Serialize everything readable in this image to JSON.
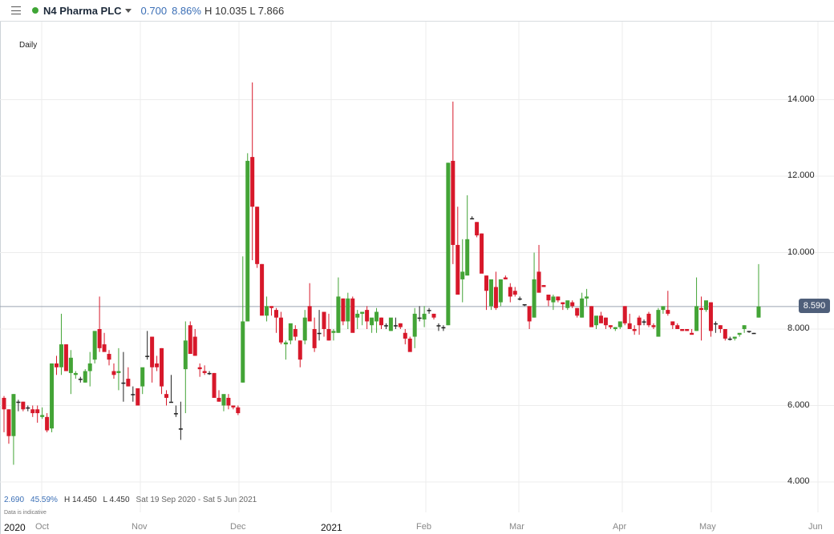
{
  "header": {
    "menu_icon": "hamburger-menu-icon",
    "status_color": "#3fa535",
    "instrument": "N4 Pharma PLC",
    "change": "0.700",
    "change_pct": "8.86%",
    "high_low": "H 10.035 L 7.866"
  },
  "interval": "Daily",
  "footer": {
    "change": "2.690",
    "change_pct": "45.59%",
    "high": "H 14.450",
    "low": "L 4.450",
    "range": "Sat 19 Sep 2020 - Sat 5 Jun 2021",
    "disclaimer": "Data is indicative"
  },
  "current_price": "8.590",
  "colors": {
    "up": "#43a436",
    "down": "#d7182a",
    "doji": "#222222",
    "grid": "#ececec",
    "price_line": "#9aa3b0",
    "price_tag": "#4f5f7a"
  },
  "chart_data": {
    "type": "candlestick",
    "title": "N4 Pharma PLC",
    "interval": "Daily",
    "y_ticks": [
      "4.000",
      "6.000",
      "8.000",
      "10.000",
      "12.000",
      "14.000"
    ],
    "ylim": [
      3.6,
      16.3
    ],
    "x_ticks": [
      {
        "label": "2020",
        "year": true
      },
      {
        "label": "Oct"
      },
      {
        "label": "Nov"
      },
      {
        "label": "Dec"
      },
      {
        "label": "2021",
        "year": true
      },
      {
        "label": "Feb"
      },
      {
        "label": "Mar"
      },
      {
        "label": "Apr"
      },
      {
        "label": "May"
      },
      {
        "label": "Jun"
      }
    ],
    "grid": true,
    "current_price_line": 8.59,
    "period_high": 14.45,
    "period_low": 4.45,
    "candles_ohlc": [
      [
        6.2,
        6.25,
        5.3,
        5.9
      ],
      [
        5.9,
        5.9,
        5.0,
        5.2
      ],
      [
        5.2,
        6.3,
        4.45,
        6.3
      ],
      [
        6.1,
        6.15,
        5.85,
        6.1
      ],
      [
        6.1,
        6.1,
        5.85,
        5.9
      ],
      [
        5.95,
        6.0,
        5.85,
        5.95
      ],
      [
        5.9,
        6.0,
        5.7,
        5.8
      ],
      [
        5.9,
        6.0,
        5.55,
        5.8
      ],
      [
        5.7,
        5.95,
        5.65,
        5.75
      ],
      [
        5.7,
        5.8,
        5.3,
        5.35
      ],
      [
        5.4,
        7.1,
        5.3,
        7.1
      ],
      [
        7.1,
        7.3,
        6.8,
        7.0
      ],
      [
        7.0,
        8.4,
        6.8,
        7.6
      ],
      [
        7.6,
        7.6,
        6.9,
        6.9
      ],
      [
        6.85,
        7.45,
        6.3,
        7.25
      ],
      [
        6.8,
        6.9,
        6.7,
        6.85
      ],
      [
        6.7,
        6.75,
        6.6,
        6.7
      ],
      [
        6.6,
        6.95,
        6.6,
        6.9
      ],
      [
        6.9,
        7.4,
        6.5,
        7.1
      ],
      [
        7.2,
        7.95,
        7.1,
        7.95
      ],
      [
        8.0,
        8.85,
        7.4,
        7.5
      ],
      [
        7.6,
        7.9,
        7.5,
        7.4
      ],
      [
        7.35,
        7.45,
        7.05,
        7.2
      ],
      [
        6.9,
        7.1,
        6.7,
        6.8
      ],
      [
        6.85,
        7.5,
        6.4,
        6.9
      ],
      [
        6.6,
        7.4,
        6.1,
        6.6
      ],
      [
        6.7,
        7.0,
        6.5,
        6.5
      ],
      [
        6.3,
        6.5,
        6.1,
        6.3
      ],
      [
        6.45,
        6.45,
        6.0,
        6.0
      ],
      [
        6.5,
        6.7,
        6.3,
        7.0
      ],
      [
        7.3,
        7.95,
        7.2,
        7.3
      ],
      [
        7.8,
        7.8,
        6.6,
        7.0
      ],
      [
        7.1,
        7.3,
        6.9,
        7.0
      ],
      [
        7.5,
        7.5,
        6.3,
        6.5
      ],
      [
        6.3,
        6.4,
        6.0,
        6.2
      ],
      [
        6.1,
        6.8,
        6.1,
        6.1
      ],
      [
        5.8,
        6.0,
        5.7,
        5.8
      ],
      [
        5.4,
        6.1,
        5.1,
        5.4
      ],
      [
        6.95,
        8.2,
        5.8,
        7.7
      ],
      [
        8.1,
        8.2,
        7.4,
        7.35
      ],
      [
        7.8,
        8.0,
        7.3,
        7.3
      ],
      [
        7.0,
        7.1,
        6.75,
        6.95
      ],
      [
        6.9,
        7.05,
        6.8,
        6.85
      ],
      [
        6.85,
        6.9,
        6.8,
        6.85
      ],
      [
        6.85,
        6.85,
        6.25,
        6.2
      ],
      [
        6.2,
        6.4,
        6.1,
        6.1
      ],
      [
        6.0,
        6.2,
        5.85,
        6.3
      ],
      [
        6.2,
        6.3,
        5.9,
        6.0
      ],
      [
        6.0,
        6.0,
        5.9,
        5.95
      ],
      [
        5.95,
        6.0,
        5.75,
        5.8
      ],
      [
        6.6,
        9.9,
        6.6,
        8.2
      ],
      [
        8.2,
        12.6,
        8.2,
        12.4
      ],
      [
        12.5,
        14.45,
        9.8,
        11.2
      ],
      [
        11.2,
        11.2,
        9.6,
        9.7
      ],
      [
        9.7,
        9.7,
        8.5,
        8.35
      ],
      [
        8.35,
        8.85,
        8.2,
        8.6
      ],
      [
        8.6,
        8.6,
        8.35,
        8.55
      ],
      [
        8.5,
        8.55,
        7.9,
        8.3
      ],
      [
        8.3,
        8.45,
        7.6,
        7.65
      ],
      [
        7.6,
        7.7,
        7.2,
        7.65
      ],
      [
        7.7,
        8.0,
        7.6,
        8.15
      ],
      [
        8.0,
        8.1,
        7.7,
        7.8
      ],
      [
        7.7,
        7.7,
        7.0,
        7.2
      ],
      [
        7.7,
        8.5,
        7.6,
        8.3
      ],
      [
        8.6,
        9.2,
        8.5,
        8.2
      ],
      [
        8.0,
        8.3,
        7.4,
        7.5
      ],
      [
        7.9,
        8.5,
        7.7,
        7.9
      ],
      [
        8.45,
        8.45,
        7.8,
        8.0
      ],
      [
        8.0,
        8.4,
        7.7,
        7.7
      ],
      [
        7.9,
        8.0,
        7.7,
        7.95
      ],
      [
        7.9,
        9.35,
        7.9,
        8.85
      ],
      [
        8.8,
        8.8,
        8.1,
        8.2
      ],
      [
        8.2,
        8.95,
        8.0,
        8.8
      ],
      [
        8.8,
        8.85,
        7.95,
        7.9
      ],
      [
        8.3,
        8.5,
        8.0,
        8.4
      ],
      [
        8.4,
        8.45,
        8.1,
        8.45
      ],
      [
        8.5,
        8.6,
        8.0,
        8.2
      ],
      [
        8.1,
        8.2,
        7.9,
        8.3
      ],
      [
        8.2,
        8.55,
        7.9,
        8.45
      ],
      [
        8.3,
        8.3,
        8.0,
        8.1
      ],
      [
        8.1,
        8.15,
        8.0,
        8.1
      ],
      [
        7.95,
        8.15,
        7.95,
        8.3
      ],
      [
        8.1,
        8.3,
        8.0,
        8.1
      ],
      [
        8.15,
        8.15,
        8.0,
        8.05
      ],
      [
        7.9,
        8.0,
        7.6,
        7.75
      ],
      [
        7.75,
        7.8,
        7.45,
        7.4
      ],
      [
        7.8,
        8.55,
        7.5,
        8.4
      ],
      [
        8.3,
        8.6,
        8.2,
        8.3
      ],
      [
        8.25,
        8.6,
        8.05,
        8.4
      ],
      [
        8.5,
        8.55,
        8.4,
        8.5
      ],
      [
        8.4,
        8.4,
        8.25,
        8.3
      ],
      [
        8.1,
        8.15,
        7.95,
        8.1
      ],
      [
        8.05,
        8.1,
        7.95,
        8.05
      ],
      [
        8.1,
        12.35,
        8.1,
        12.35
      ],
      [
        12.4,
        13.95,
        9.7,
        10.2
      ],
      [
        10.2,
        11.2,
        9.2,
        8.9
      ],
      [
        9.3,
        10.35,
        8.7,
        9.5
      ],
      [
        9.4,
        11.5,
        9.4,
        10.35
      ],
      [
        10.9,
        10.95,
        10.9,
        10.9
      ],
      [
        10.8,
        10.8,
        10.4,
        10.45
      ],
      [
        10.5,
        10.5,
        9.8,
        9.45
      ],
      [
        9.4,
        9.4,
        8.5,
        9.0
      ],
      [
        8.6,
        9.0,
        8.5,
        9.3
      ],
      [
        9.1,
        9.5,
        8.5,
        8.55
      ],
      [
        8.7,
        9.3,
        8.6,
        9.3
      ],
      [
        9.35,
        9.4,
        9.3,
        9.3
      ],
      [
        9.1,
        9.2,
        8.7,
        8.85
      ],
      [
        9.0,
        9.1,
        8.85,
        8.9
      ],
      [
        8.8,
        8.85,
        8.75,
        8.8
      ],
      [
        8.65,
        8.65,
        8.6,
        8.65
      ],
      [
        8.6,
        8.6,
        8.0,
        8.2
      ],
      [
        8.3,
        10.0,
        8.3,
        9.3
      ],
      [
        9.5,
        10.2,
        9.2,
        8.95
      ],
      [
        9.15,
        9.15,
        9.1,
        9.1
      ],
      [
        8.9,
        8.9,
        8.6,
        8.75
      ],
      [
        8.7,
        8.9,
        8.5,
        8.85
      ],
      [
        8.85,
        8.85,
        8.7,
        8.75
      ],
      [
        8.7,
        8.7,
        8.5,
        8.65
      ],
      [
        8.55,
        8.6,
        8.5,
        8.75
      ],
      [
        8.7,
        8.75,
        8.55,
        8.6
      ],
      [
        8.55,
        8.55,
        8.3,
        8.35
      ],
      [
        8.3,
        8.95,
        8.3,
        8.8
      ],
      [
        8.8,
        9.05,
        8.6,
        8.85
      ],
      [
        8.6,
        8.6,
        8.1,
        8.05
      ],
      [
        8.1,
        8.2,
        8.0,
        8.35
      ],
      [
        8.35,
        8.45,
        8.2,
        8.15
      ],
      [
        8.3,
        8.3,
        8.0,
        8.1
      ],
      [
        8.1,
        8.1,
        8.0,
        8.05
      ],
      [
        8.0,
        8.05,
        7.95,
        8.05
      ],
      [
        8.05,
        8.2,
        8.0,
        8.2
      ],
      [
        8.6,
        8.6,
        8.1,
        8.15
      ],
      [
        8.15,
        8.4,
        8.0,
        8.0
      ],
      [
        8.0,
        8.1,
        7.85,
        7.95
      ],
      [
        8.3,
        8.35,
        7.85,
        8.1
      ],
      [
        8.2,
        8.25,
        8.1,
        8.2
      ],
      [
        8.4,
        8.45,
        8.05,
        8.1
      ],
      [
        8.1,
        8.15,
        8.0,
        8.05
      ],
      [
        7.8,
        8.55,
        7.8,
        8.5
      ],
      [
        8.5,
        8.55,
        8.4,
        8.6
      ],
      [
        8.5,
        9.0,
        8.35,
        8.4
      ],
      [
        8.2,
        8.2,
        8.0,
        8.1
      ],
      [
        8.1,
        8.15,
        8.0,
        8.0
      ],
      [
        8.0,
        8.0,
        7.95,
        7.95
      ],
      [
        8.0,
        8.0,
        7.95,
        7.95
      ],
      [
        7.9,
        8.0,
        7.9,
        7.85
      ],
      [
        7.95,
        9.35,
        7.95,
        8.6
      ],
      [
        8.55,
        8.85,
        7.7,
        8.5
      ],
      [
        8.5,
        8.55,
        8.45,
        8.75
      ],
      [
        8.7,
        8.7,
        7.8,
        7.95
      ],
      [
        8.15,
        8.2,
        7.9,
        8.15
      ],
      [
        8.1,
        8.1,
        7.9,
        8.0
      ],
      [
        8.0,
        8.0,
        7.7,
        7.75
      ],
      [
        7.75,
        7.8,
        7.7,
        7.75
      ],
      [
        7.75,
        7.8,
        7.7,
        7.8
      ],
      [
        7.85,
        7.85,
        7.8,
        7.9
      ],
      [
        8.0,
        8.1,
        7.9,
        8.1
      ],
      [
        7.95,
        7.95,
        7.9,
        7.95
      ],
      [
        7.9,
        7.9,
        7.88,
        7.9
      ],
      [
        8.3,
        9.7,
        8.3,
        8.59
      ]
    ]
  }
}
